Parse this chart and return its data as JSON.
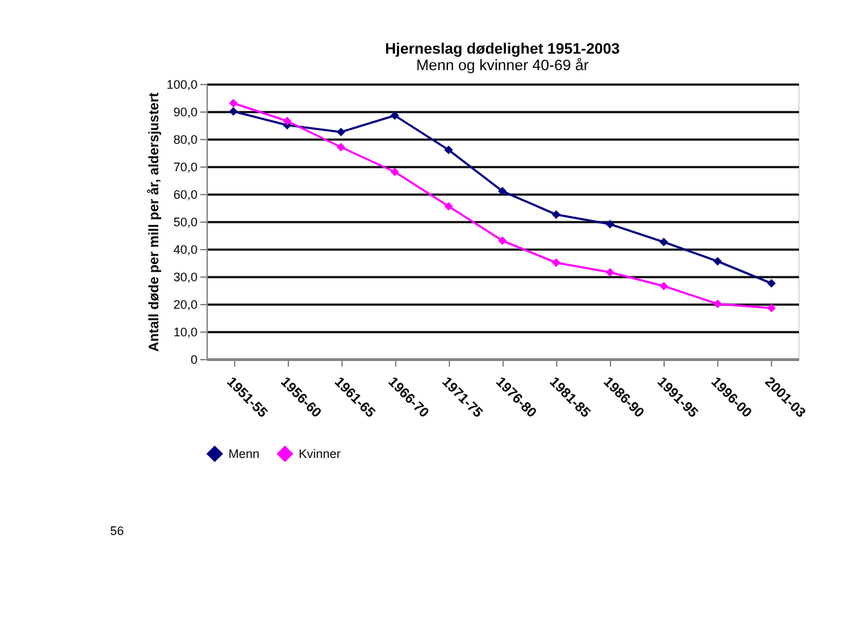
{
  "chart_data": {
    "type": "line",
    "title": "Hjerneslag dødelighet 1951-2003",
    "subtitle": "Menn og kvinner 40-69 år",
    "ylabel": "Antall døde per mill per år, aldersjustert",
    "categories": [
      "1951-55",
      "1956-60",
      "1961-65",
      "1966-70",
      "1971-75",
      "1976-80",
      "1981-85",
      "1986-90",
      "1991-95",
      "1996-00",
      "2001-03"
    ],
    "series": [
      {
        "name": "Menn",
        "color": "#000080",
        "values": [
          90,
          85,
          82.5,
          88.5,
          76,
          61,
          52.5,
          49,
          42.5,
          35.5,
          27.5
        ]
      },
      {
        "name": "Kvinner",
        "color": "#ff00ff",
        "values": [
          93,
          86.5,
          77,
          68,
          55.5,
          43,
          35,
          31.5,
          26.5,
          20,
          18.5
        ]
      }
    ],
    "ylim": [
      0,
      100
    ],
    "yticks": [
      0,
      {
        "value": 10,
        "label": "10,0"
      },
      {
        "value": 20,
        "label": "20,0"
      },
      {
        "value": 30,
        "label": "30,0"
      },
      {
        "value": 40,
        "label": "40,0"
      },
      {
        "value": 50,
        "label": "50,0"
      },
      {
        "value": 60,
        "label": "60,0"
      },
      {
        "value": 70,
        "label": "70,0"
      },
      {
        "value": 80,
        "label": "80,0"
      },
      {
        "value": 90,
        "label": "90,0"
      },
      {
        "value": 100,
        "label": "100,0"
      }
    ],
    "grid": "y",
    "legend": "bottom",
    "marker": "diamond",
    "line_style": "solid",
    "annotations": [
      "56"
    ]
  }
}
